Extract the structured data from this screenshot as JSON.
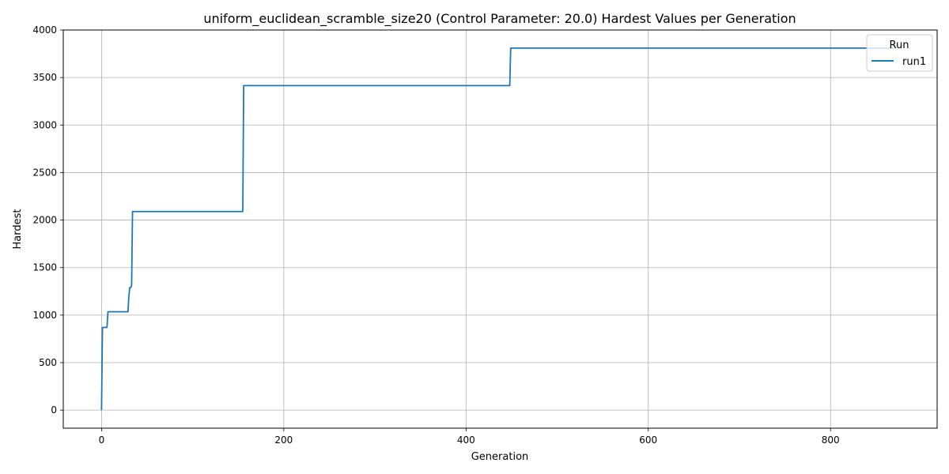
{
  "chart_data": {
    "type": "line",
    "title": "uniform_euclidean_scramble_size20 (Control Parameter: 20.0) Hardest Values per Generation",
    "xlabel": "Generation",
    "ylabel": "Hardest",
    "xlim": [
      -42,
      917
    ],
    "ylim": [
      -190,
      4000
    ],
    "xticks": [
      0,
      200,
      400,
      600,
      800
    ],
    "yticks": [
      0,
      500,
      1000,
      1500,
      2000,
      2500,
      3000,
      3500,
      4000
    ],
    "grid": true,
    "legend": {
      "title": "Run",
      "position": "top-right"
    },
    "series": [
      {
        "name": "run1",
        "color": "#1f77b4",
        "points": [
          [
            0,
            0
          ],
          [
            1,
            870
          ],
          [
            6,
            870
          ],
          [
            7,
            1035
          ],
          [
            29,
            1035
          ],
          [
            30,
            1200
          ],
          [
            31,
            1290
          ],
          [
            32,
            1290
          ],
          [
            33,
            1310
          ],
          [
            34,
            2090
          ],
          [
            155,
            2090
          ],
          [
            156,
            3415
          ],
          [
            448,
            3415
          ],
          [
            449,
            3810
          ],
          [
            870,
            3810
          ]
        ]
      }
    ]
  }
}
